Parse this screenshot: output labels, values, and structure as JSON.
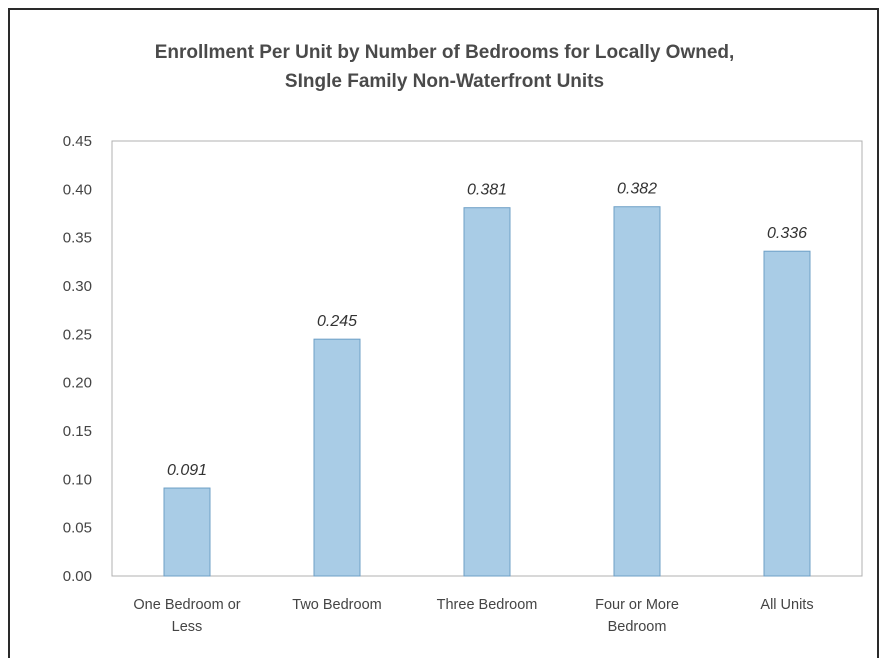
{
  "chart_data": {
    "type": "bar",
    "title_lines": [
      "Enrollment Per Unit by Number of Bedrooms for Locally Owned,",
      "SIngle Family Non-Waterfront Units"
    ],
    "categories": [
      [
        "One Bedroom or",
        "Less"
      ],
      [
        "Two Bedroom"
      ],
      [
        "Three Bedroom"
      ],
      [
        "Four or More",
        "Bedroom"
      ],
      [
        "All Units"
      ]
    ],
    "values": [
      0.091,
      0.245,
      0.381,
      0.382,
      0.336
    ],
    "data_labels": [
      "0.091",
      "0.245",
      "0.381",
      "0.382",
      "0.336"
    ],
    "ylim": [
      0,
      0.45
    ],
    "yticks": [
      0.0,
      0.05,
      0.1,
      0.15,
      0.2,
      0.25,
      0.3,
      0.35,
      0.4,
      0.45
    ],
    "ytick_labels": [
      "0.00",
      "0.05",
      "0.10",
      "0.15",
      "0.20",
      "0.25",
      "0.30",
      "0.35",
      "0.40",
      "0.45"
    ],
    "xlabel": "",
    "ylabel": "",
    "grid": false,
    "legend": "none",
    "bar_color": "#a9cce6",
    "bar_edge_color": "#6d9fc6",
    "plot_border_color": "#b0b0b0"
  }
}
